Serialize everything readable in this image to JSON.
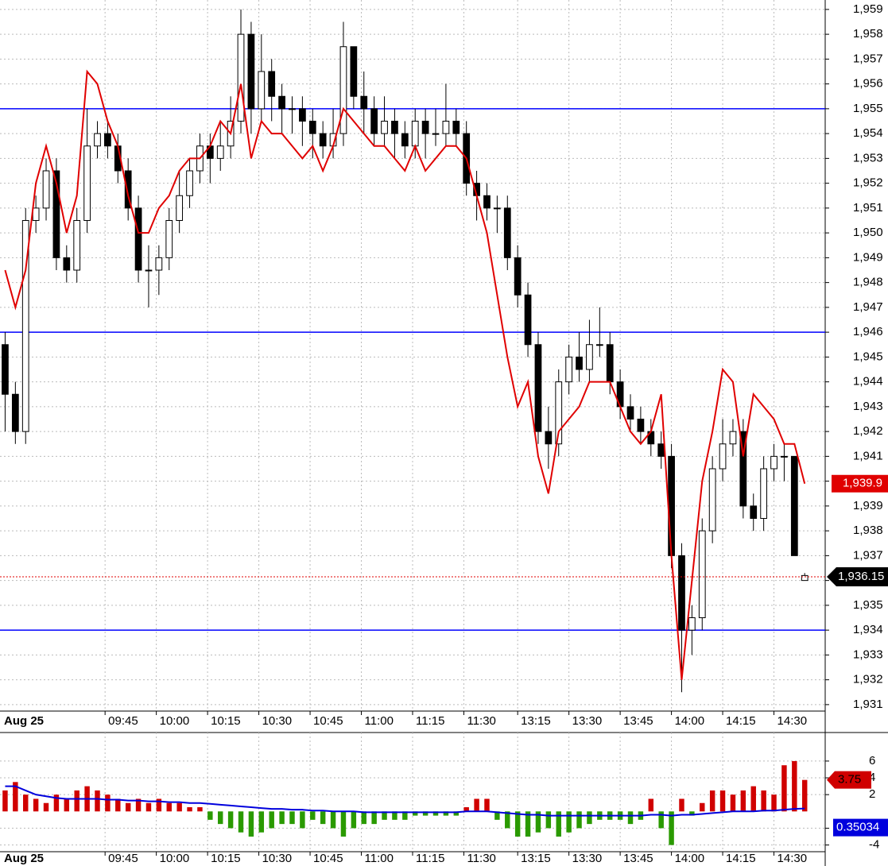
{
  "chart_data": [
    {
      "type": "candlestick",
      "date_label": "Aug 25",
      "xlim": [
        0,
        80.5
      ],
      "xticks": [
        {
          "value": 10.25,
          "label": "09:45"
        },
        {
          "value": 15.25,
          "label": "10:00"
        },
        {
          "value": 20.25,
          "label": "10:15"
        },
        {
          "value": 25.25,
          "label": "10:30"
        },
        {
          "value": 30.25,
          "label": "10:45"
        },
        {
          "value": 35.25,
          "label": "11:00"
        },
        {
          "value": 40.25,
          "label": "11:15"
        },
        {
          "value": 45.25,
          "label": "11:30"
        },
        {
          "value": 50.5,
          "label": "13:15"
        },
        {
          "value": 55.5,
          "label": "13:30"
        },
        {
          "value": 60.5,
          "label": "13:45"
        },
        {
          "value": 65.5,
          "label": "14:00"
        },
        {
          "value": 70.5,
          "label": "14:15"
        },
        {
          "value": 75.5,
          "label": "14:30"
        }
      ],
      "ylim": [
        1930.74,
        1959.38
      ],
      "yticks": [
        {
          "value": 1959,
          "label": "1,959"
        },
        {
          "value": 1958,
          "label": "1,958"
        },
        {
          "value": 1957,
          "label": "1,957"
        },
        {
          "value": 1956,
          "label": "1,956"
        },
        {
          "value": 1955,
          "label": "1,955"
        },
        {
          "value": 1954,
          "label": "1,954"
        },
        {
          "value": 1953,
          "label": "1,953"
        },
        {
          "value": 1952,
          "label": "1,952"
        },
        {
          "value": 1951,
          "label": "1,951"
        },
        {
          "value": 1950,
          "label": "1,950"
        },
        {
          "value": 1949,
          "label": "1,949"
        },
        {
          "value": 1948,
          "label": "1,948"
        },
        {
          "value": 1947,
          "label": "1,947"
        },
        {
          "value": 1946,
          "label": "1,946"
        },
        {
          "value": 1945,
          "label": "1,945"
        },
        {
          "value": 1944,
          "label": "1,944"
        },
        {
          "value": 1943,
          "label": "1,943"
        },
        {
          "value": 1942,
          "label": "1,942"
        },
        {
          "value": 1941,
          "label": "1,941"
        },
        {
          "value": 1940,
          "label": "1,940"
        },
        {
          "value": 1939,
          "label": "1,939"
        },
        {
          "value": 1938,
          "label": "1,938"
        },
        {
          "value": 1937,
          "label": "1,937"
        },
        {
          "value": 1936,
          "label": "1,936"
        },
        {
          "value": 1935,
          "label": "1,935"
        },
        {
          "value": 1934,
          "label": "1,934"
        },
        {
          "value": 1933,
          "label": "1,933"
        },
        {
          "value": 1932,
          "label": "1,932"
        },
        {
          "value": 1931,
          "label": "1,931"
        }
      ],
      "grid": true,
      "open": [
        1945.5,
        1943.5,
        1942,
        1950.5,
        1951,
        1952.5,
        1949,
        1948.5,
        1950.5,
        1953.5,
        1954,
        1953.5,
        1952.5,
        1951,
        1948.5,
        1948.5,
        1949,
        1950.5,
        1951.5,
        1952.5,
        1953.5,
        1953,
        1953.5,
        1954.5,
        1958,
        1955,
        1956.5,
        1955.5,
        1955,
        1955,
        1954.5,
        1954,
        1953.5,
        1954,
        1957.5,
        1955.5,
        1955,
        1954,
        1954.5,
        1954,
        1953.5,
        1954.5,
        1954,
        1954,
        1954.5,
        1954,
        1952,
        1951.5,
        1951,
        1951,
        1949,
        1947.5,
        1945.5,
        1942,
        1941.5,
        1944,
        1945,
        1944.5,
        1945.5,
        1945.5,
        1944,
        1943,
        1942.5,
        1942,
        1941.5,
        1941,
        1937,
        1934,
        1934.5,
        1938,
        1940.5,
        1941.5,
        1942,
        1939,
        1938.5,
        1940.5,
        1941,
        1941,
        1936
      ],
      "high": [
        1946,
        1944,
        1951,
        1951.5,
        1953,
        1953,
        1949.5,
        1951,
        1955,
        1954.5,
        1954.5,
        1954,
        1953,
        1951.5,
        1949.5,
        1949.5,
        1951,
        1952.5,
        1953,
        1954,
        1954,
        1954.5,
        1955.5,
        1959,
        1958.5,
        1958,
        1957,
        1956,
        1955.5,
        1955.5,
        1955,
        1954.5,
        1955,
        1958.5,
        1957.5,
        1956.5,
        1955.5,
        1955.5,
        1955,
        1954.5,
        1955,
        1955,
        1955,
        1956,
        1955,
        1954.5,
        1952.5,
        1952,
        1951.5,
        1951.5,
        1949.5,
        1948,
        1946,
        1943,
        1944.5,
        1945.5,
        1946,
        1946.5,
        1947,
        1946,
        1944.5,
        1943.5,
        1943,
        1942.5,
        1942,
        1941.5,
        1937.5,
        1935,
        1938.5,
        1941,
        1942.5,
        1942.5,
        1942.5,
        1939.5,
        1941,
        1941.5,
        1941.5,
        1941,
        1936.3
      ],
      "low": [
        1942,
        1941.5,
        1941.5,
        1950,
        1950.5,
        1948.5,
        1948,
        1948,
        1950,
        1953,
        1953,
        1952,
        1950.5,
        1948,
        1947,
        1947.5,
        1948.5,
        1950,
        1951,
        1952,
        1952,
        1952.5,
        1953,
        1954,
        1954,
        1954.5,
        1954.5,
        1954,
        1954,
        1953.5,
        1953,
        1953,
        1953,
        1953.5,
        1955,
        1954,
        1953.5,
        1953.5,
        1953,
        1953,
        1953,
        1953,
        1953.5,
        1953.5,
        1953.5,
        1951.5,
        1950.5,
        1950.5,
        1950,
        1948.5,
        1947,
        1945,
        1941.5,
        1940.5,
        1941,
        1943.5,
        1944,
        1944,
        1945,
        1943.5,
        1942.5,
        1942,
        1941.5,
        1941,
        1940.5,
        1936.5,
        1931.5,
        1933,
        1934,
        1937.5,
        1940,
        1941,
        1938.5,
        1938,
        1938,
        1940,
        1940,
        1937,
        1936
      ],
      "close": [
        1943.5,
        1942,
        1950.5,
        1951,
        1952.5,
        1949,
        1948.5,
        1950.5,
        1953.5,
        1954,
        1953.5,
        1952.5,
        1951,
        1948.5,
        1948.5,
        1949,
        1950.5,
        1951.5,
        1952.5,
        1953.5,
        1953,
        1953.5,
        1954.5,
        1958,
        1955,
        1956.5,
        1955.5,
        1955,
        1955,
        1954.5,
        1954,
        1953.5,
        1954,
        1957.5,
        1955.5,
        1955,
        1954,
        1954.5,
        1954,
        1953.5,
        1954.5,
        1954,
        1954,
        1954.5,
        1954,
        1952,
        1951.5,
        1951,
        1951,
        1949,
        1947.5,
        1945.5,
        1942,
        1941.5,
        1944,
        1945,
        1944.5,
        1945.5,
        1945.5,
        1944,
        1943,
        1942.5,
        1942,
        1941.5,
        1941,
        1937,
        1934,
        1934.5,
        1938,
        1940.5,
        1941.5,
        1942,
        1939,
        1938.5,
        1940.5,
        1941,
        1941,
        1937,
        1936.2
      ],
      "line": {
        "color": "#e00000",
        "last_value_label": "1,939.9",
        "values": [
          1948.5,
          1947,
          1948.5,
          1952,
          1953.5,
          1952,
          1950,
          1951.5,
          1956.5,
          1956,
          1954.5,
          1953.5,
          1951.5,
          1950,
          1950,
          1951,
          1951.5,
          1952.5,
          1953,
          1953,
          1953.5,
          1954.5,
          1954,
          1956,
          1953,
          1954.5,
          1954,
          1954,
          1953.5,
          1953,
          1953.5,
          1952.5,
          1953.5,
          1955,
          1954.5,
          1954,
          1953.5,
          1953.5,
          1953,
          1952.5,
          1953.5,
          1952.5,
          1953,
          1953.5,
          1953.5,
          1953,
          1951.5,
          1950,
          1947.5,
          1945,
          1943,
          1944,
          1941,
          1939.5,
          1942,
          1942.5,
          1943,
          1944,
          1944,
          1944,
          1943,
          1942,
          1941.5,
          1942,
          1943.5,
          1937,
          1932,
          1936,
          1940,
          1942,
          1944.5,
          1944,
          1941,
          1943.5,
          1943,
          1942.5,
          1941.5,
          1941.5,
          1939.9
        ]
      },
      "hlines": {
        "color": "#0000ff",
        "values": [
          1955,
          1946,
          1934
        ]
      },
      "price_line": {
        "value": 1936.15,
        "label": "1,936.15",
        "color": "#e00000"
      }
    },
    {
      "type": "bar",
      "date_label": "Aug 25",
      "xlim": [
        0,
        80.5
      ],
      "xticks": [
        {
          "value": 10.25,
          "label": "09:45"
        },
        {
          "value": 15.25,
          "label": "10:00"
        },
        {
          "value": 20.25,
          "label": "10:15"
        },
        {
          "value": 25.25,
          "label": "10:30"
        },
        {
          "value": 30.25,
          "label": "10:45"
        },
        {
          "value": 35.25,
          "label": "11:00"
        },
        {
          "value": 40.25,
          "label": "11:15"
        },
        {
          "value": 45.25,
          "label": "11:30"
        },
        {
          "value": 50.5,
          "label": "13:15"
        },
        {
          "value": 55.5,
          "label": "13:30"
        },
        {
          "value": 60.5,
          "label": "13:45"
        },
        {
          "value": 65.5,
          "label": "14:00"
        },
        {
          "value": 70.5,
          "label": "14:15"
        },
        {
          "value": 75.5,
          "label": "14:30"
        }
      ],
      "ylim": [
        -4.8,
        9.4
      ],
      "yticks": [
        6,
        4,
        2,
        -2,
        -4
      ],
      "grid": true,
      "positive_color": "#d00000",
      "negative_color": "#2a9a00",
      "values": [
        2.5,
        3.5,
        2,
        1.5,
        1,
        2,
        1.5,
        2.5,
        3,
        2.5,
        2,
        1.5,
        1,
        1.5,
        1,
        1.5,
        1,
        1,
        0.5,
        0.5,
        -1,
        -1.5,
        -2,
        -2.5,
        -3,
        -2.5,
        -2,
        -1.5,
        -1.5,
        -2,
        -1,
        -1.5,
        -2,
        -3,
        -2,
        -1.5,
        -1.5,
        -1,
        -1,
        -1,
        -0.5,
        -0.5,
        -0.5,
        -0.5,
        -0.5,
        0.5,
        1.5,
        1.5,
        -1,
        -2,
        -3,
        -3,
        -2.5,
        -2,
        -3,
        -2.5,
        -2,
        -1.5,
        -1,
        -1,
        -1,
        -1.5,
        -1,
        1.5,
        -2,
        -4,
        1.5,
        -0.5,
        1,
        2.5,
        2.5,
        2,
        2.5,
        3,
        2.5,
        2,
        5.5,
        6,
        3.75
      ],
      "line": {
        "color": "#0000dd",
        "values": [
          3,
          3,
          2.5,
          2,
          1.8,
          1.6,
          1.5,
          1.5,
          1.5,
          1.5,
          1.4,
          1.4,
          1.3,
          1.3,
          1.2,
          1.2,
          1.1,
          1.1,
          1,
          1,
          0.9,
          0.8,
          0.7,
          0.6,
          0.5,
          0.4,
          0.3,
          0.3,
          0.2,
          0.2,
          0.1,
          0.1,
          0,
          0,
          0,
          -0.1,
          -0.1,
          -0.1,
          -0.1,
          -0.1,
          -0.1,
          -0.1,
          -0.1,
          -0.1,
          -0.1,
          0,
          0,
          0,
          -0.1,
          -0.2,
          -0.3,
          -0.4,
          -0.4,
          -0.5,
          -0.5,
          -0.5,
          -0.5,
          -0.5,
          -0.5,
          -0.5,
          -0.5,
          -0.5,
          -0.5,
          -0.4,
          -0.4,
          -0.5,
          -0.4,
          -0.4,
          -0.3,
          -0.2,
          -0.1,
          0,
          0,
          0,
          0.1,
          0.1,
          0.2,
          0.3,
          0.35034
        ]
      }
    }
  ]
}
